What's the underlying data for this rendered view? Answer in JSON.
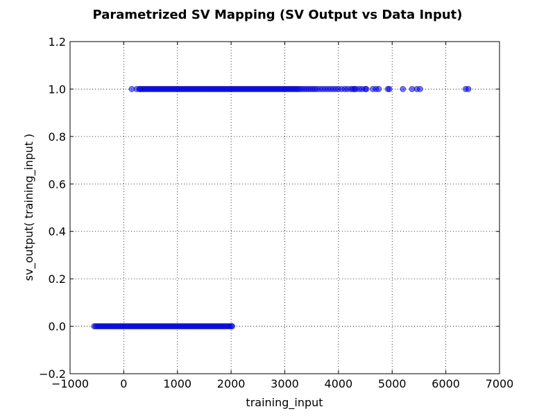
{
  "chart_data": {
    "type": "scatter",
    "title": "Parametrized SV Mapping (SV Output vs Data Input)",
    "xlabel": "training_input",
    "ylabel": "sv_output( training_input )",
    "xlim": [
      -1000,
      7000
    ],
    "ylim": [
      -0.2,
      1.2
    ],
    "xticks": [
      -1000,
      0,
      1000,
      2000,
      3000,
      4000,
      5000,
      6000,
      7000
    ],
    "xtick_labels": [
      "−1000",
      "0",
      "1000",
      "2000",
      "3000",
      "4000",
      "5000",
      "6000",
      "7000"
    ],
    "yticks": [
      -0.2,
      0.0,
      0.2,
      0.4,
      0.6,
      0.8,
      1.0,
      1.2
    ],
    "ytick_labels": [
      "−0.2",
      "0.0",
      "0.2",
      "0.4",
      "0.6",
      "0.8",
      "1.0",
      "1.2"
    ],
    "grid": true,
    "marker_color": "#0000ff",
    "marker_edge_color": "#00008b",
    "series": [
      {
        "values_y": 0,
        "x": [
          -550,
          -520,
          -490,
          -460,
          -430,
          -400,
          -370,
          -340,
          -310,
          -280,
          -250,
          -220,
          -190,
          -160,
          -130,
          -100,
          -70,
          -40,
          -10,
          20,
          50,
          80,
          110,
          140,
          170,
          200,
          230,
          260,
          290,
          320,
          350,
          380,
          410,
          440,
          470,
          500,
          530,
          560,
          590,
          620,
          650,
          680,
          710,
          740,
          770,
          800,
          830,
          860,
          890,
          920,
          950,
          980,
          1010,
          1040,
          1070,
          1100,
          1130,
          1160,
          1190,
          1220,
          1250,
          1280,
          1310,
          1340,
          1370,
          1400,
          1430,
          1460,
          1490,
          1520,
          1550,
          1580,
          1610,
          1640,
          1670,
          1700,
          1730,
          1760,
          1790,
          1820,
          1850,
          1880,
          1910,
          1940,
          1970,
          2000,
          2020
        ]
      },
      {
        "values_y": 1,
        "x": [
          150,
          240,
          290,
          310,
          340,
          370,
          400,
          430,
          460,
          490,
          520,
          550,
          580,
          610,
          640,
          670,
          700,
          730,
          760,
          790,
          820,
          850,
          880,
          910,
          940,
          970,
          1000,
          1030,
          1060,
          1090,
          1120,
          1150,
          1180,
          1210,
          1240,
          1270,
          1300,
          1330,
          1360,
          1390,
          1420,
          1450,
          1480,
          1510,
          1540,
          1570,
          1600,
          1630,
          1660,
          1690,
          1720,
          1750,
          1780,
          1810,
          1840,
          1870,
          1900,
          1930,
          1960,
          1990,
          2020,
          2050,
          2080,
          2110,
          2140,
          2170,
          2200,
          2230,
          2260,
          2290,
          2320,
          2350,
          2380,
          2410,
          2440,
          2470,
          2500,
          2530,
          2560,
          2590,
          2620,
          2650,
          2680,
          2710,
          2740,
          2770,
          2800,
          2830,
          2860,
          2890,
          2920,
          2950,
          2980,
          3010,
          3040,
          3070,
          3100,
          3130,
          3160,
          3190,
          3220,
          3250,
          3280,
          3320,
          3360,
          3400,
          3440,
          3480,
          3520,
          3560,
          3600,
          3650,
          3700,
          3750,
          3800,
          3850,
          3900,
          3950,
          4000,
          4060,
          4120,
          4170,
          4230,
          4270,
          4300,
          4330,
          4390,
          4440,
          4500,
          4520,
          4640,
          4700,
          4750,
          4920,
          4950,
          5200,
          5370,
          5460,
          5520,
          6370,
          6420
        ]
      }
    ]
  }
}
